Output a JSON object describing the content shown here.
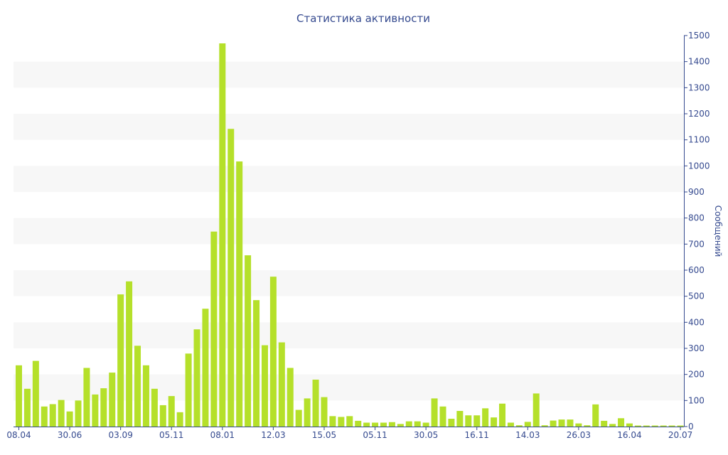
{
  "chart_data": {
    "type": "bar",
    "title": "Статистика активности",
    "xlabel": "",
    "ylabel": "Сообщений",
    "ylim": [
      0,
      1500
    ],
    "yticks": [
      0,
      100,
      200,
      300,
      400,
      500,
      600,
      700,
      800,
      900,
      1000,
      1100,
      1200,
      1300,
      1400,
      1500
    ],
    "xtick_labels": [
      {
        "index": 0,
        "label": "08.04"
      },
      {
        "index": 6,
        "label": "30.06"
      },
      {
        "index": 12,
        "label": "03.09"
      },
      {
        "index": 18,
        "label": "05.11"
      },
      {
        "index": 24,
        "label": "08.01"
      },
      {
        "index": 30,
        "label": "12.03"
      },
      {
        "index": 36,
        "label": "15.05"
      },
      {
        "index": 42,
        "label": "05.11"
      },
      {
        "index": 48,
        "label": "30.05"
      },
      {
        "index": 54,
        "label": "16.11"
      },
      {
        "index": 60,
        "label": "14.03"
      },
      {
        "index": 66,
        "label": "26.03"
      },
      {
        "index": 72,
        "label": "16.04"
      },
      {
        "index": 78,
        "label": "20.07"
      }
    ],
    "values": [
      235,
      145,
      252,
      77,
      86,
      102,
      58,
      100,
      225,
      123,
      147,
      207,
      507,
      557,
      310,
      235,
      145,
      82,
      117,
      55,
      280,
      373,
      452,
      748,
      1470,
      1142,
      1017,
      657,
      485,
      312,
      575,
      323,
      225,
      64,
      108,
      180,
      113,
      40,
      37,
      40,
      22,
      15,
      15,
      15,
      17,
      10,
      20,
      20,
      15,
      108,
      77,
      30,
      60,
      43,
      43,
      70,
      35,
      88,
      15,
      5,
      18,
      127,
      5,
      23,
      27,
      27,
      12,
      5,
      85,
      22,
      10,
      32,
      12,
      4,
      4,
      4,
      4,
      4,
      4
    ],
    "colors": {
      "bar": "#b5e02a",
      "text": "#354a8f",
      "axis": "#354a8f",
      "band": "#f7f7f7"
    },
    "grid": "alternating horizontal bands",
    "y_axis_side": "right"
  }
}
